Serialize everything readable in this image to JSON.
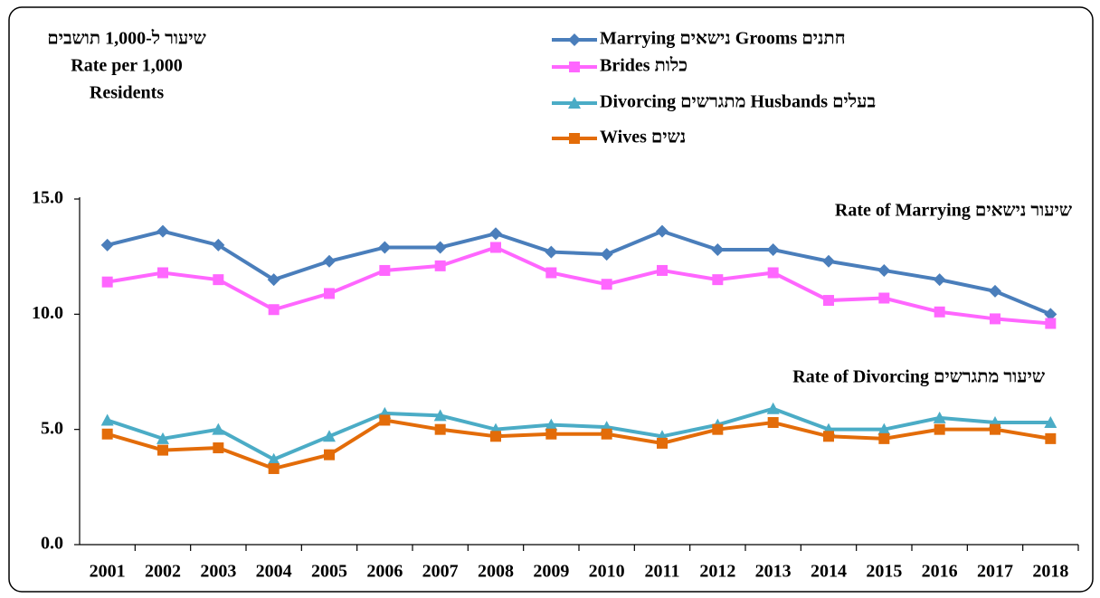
{
  "chart_data": {
    "type": "line",
    "y_label": [
      "שיעור ל-1,000 תושבים",
      "Rate per 1,000",
      "Residents"
    ],
    "annotations": [
      "Rate of Marrying  שיעור נישאים",
      "Rate of Divorcing  שיעור מתגרשים"
    ],
    "categories": [
      "2001",
      "2002",
      "2003",
      "2004",
      "2005",
      "2006",
      "2007",
      "2008",
      "2009",
      "2010",
      "2011",
      "2012",
      "2013",
      "2014",
      "2015",
      "2016",
      "2017",
      "2018"
    ],
    "series": [
      {
        "name": "Marrying נישאים Grooms חתנים",
        "color": "#4a7ebb",
        "marker": "diamond",
        "values": [
          13.0,
          13.6,
          13.0,
          11.5,
          12.3,
          12.9,
          12.9,
          13.5,
          12.7,
          12.6,
          13.6,
          12.8,
          12.8,
          12.3,
          11.9,
          11.5,
          11.0,
          10.0
        ]
      },
      {
        "name": "Brides כלות",
        "color": "#ff66ff",
        "marker": "square",
        "values": [
          11.4,
          11.8,
          11.5,
          10.2,
          10.9,
          11.9,
          12.1,
          12.9,
          11.8,
          11.3,
          11.9,
          11.5,
          11.8,
          10.6,
          10.7,
          10.1,
          9.8,
          9.6
        ]
      },
      {
        "name": "Divorcing מתגרשים Husbands בעלים",
        "color": "#4bacc6",
        "marker": "triangle",
        "values": [
          5.4,
          4.6,
          5.0,
          3.7,
          4.7,
          5.7,
          5.6,
          5.0,
          5.2,
          5.1,
          4.7,
          5.2,
          5.9,
          5.0,
          5.0,
          5.5,
          5.3,
          5.3
        ]
      },
      {
        "name": "Wives נשים",
        "color": "#e36c09",
        "marker": "square",
        "values": [
          4.8,
          4.1,
          4.2,
          3.3,
          3.9,
          5.4,
          5.0,
          4.7,
          4.8,
          4.8,
          4.4,
          5.0,
          5.3,
          4.7,
          4.6,
          5.0,
          5.0,
          4.6
        ]
      }
    ],
    "ylim": [
      0,
      15
    ],
    "yticks": [
      {
        "value": 0,
        "label": "0.0"
      },
      {
        "value": 5,
        "label": "5.0"
      },
      {
        "value": 10,
        "label": "10.0"
      },
      {
        "value": 15,
        "label": "15.0"
      }
    ]
  }
}
